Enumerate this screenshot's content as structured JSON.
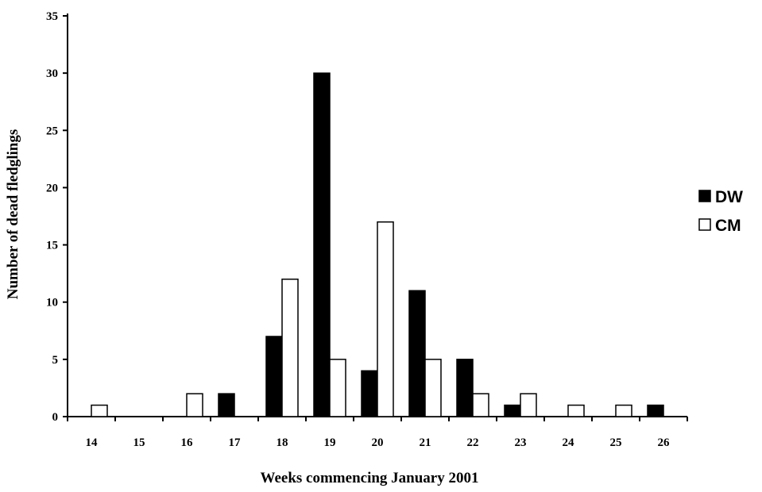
{
  "chart_data": {
    "type": "bar",
    "categories": [
      "14",
      "15",
      "16",
      "17",
      "18",
      "19",
      "20",
      "21",
      "22",
      "23",
      "24",
      "25",
      "26"
    ],
    "series": [
      {
        "name": "DW",
        "color": "#000000",
        "values": [
          0,
          0,
          0,
          2,
          7,
          30,
          4,
          11,
          5,
          1,
          0,
          0,
          1
        ]
      },
      {
        "name": "CM",
        "color": "#ffffff",
        "values": [
          1,
          0,
          2,
          0,
          12,
          5,
          17,
          5,
          2,
          2,
          1,
          1,
          0
        ]
      }
    ],
    "xlabel": "Weeks commencing January 2001",
    "ylabel": "Number of dead fledglings",
    "ylim": [
      0,
      35
    ],
    "yticks": [
      0,
      5,
      10,
      15,
      20,
      25,
      30,
      35
    ],
    "grid": false,
    "legend_position": "right"
  }
}
